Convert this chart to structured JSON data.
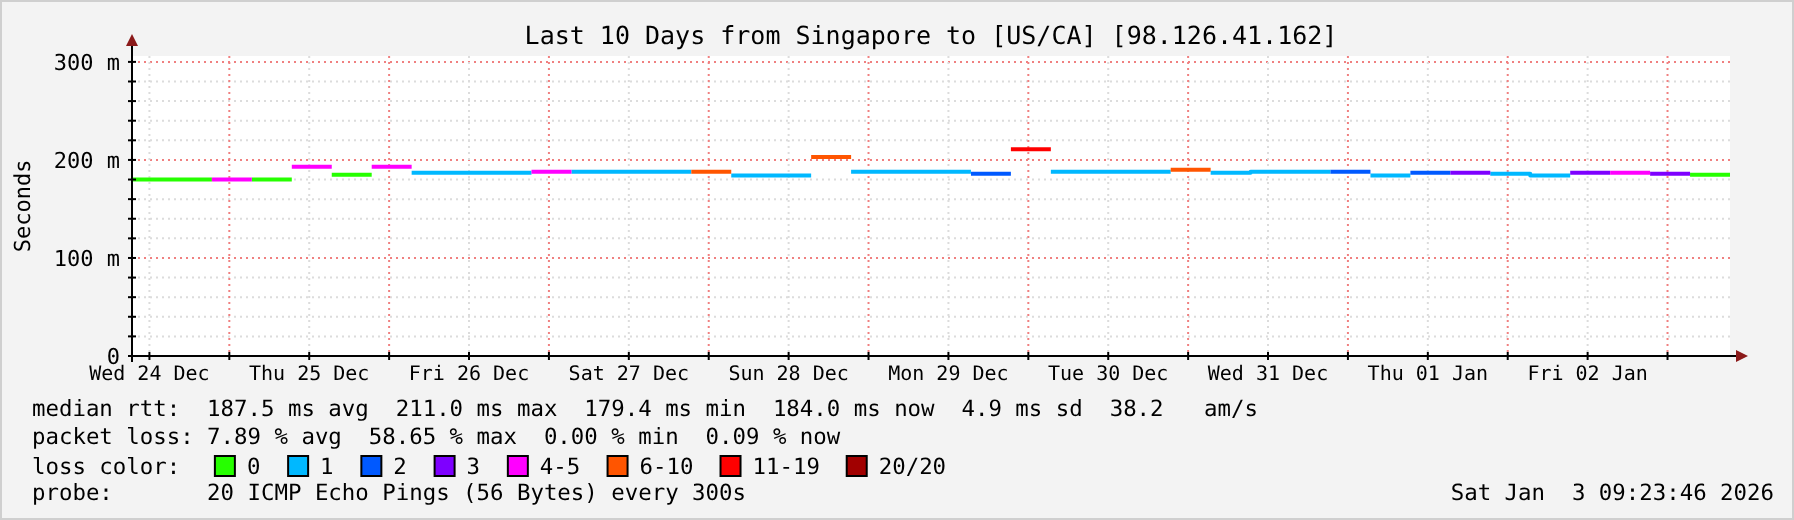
{
  "chart_data": {
    "type": "line",
    "title": "Last 10 Days from Singapore to [US/CA] [98.126.41.162]",
    "ylabel": "Seconds",
    "legend_title": "loss color:",
    "legend": "bottom",
    "grid": true,
    "xlim": [
      "2025-12-24T09:23",
      "2026-01-03T09:23"
    ],
    "xticks": [
      {
        "value": "2025-12-24T12:00",
        "label": "Wed 24 Dec"
      },
      {
        "value": "2025-12-25T12:00",
        "label": "Thu 25 Dec"
      },
      {
        "value": "2025-12-26T12:00",
        "label": "Fri 26 Dec"
      },
      {
        "value": "2025-12-27T12:00",
        "label": "Sat 27 Dec"
      },
      {
        "value": "2025-12-28T12:00",
        "label": "Sun 28 Dec"
      },
      {
        "value": "2025-12-29T12:00",
        "label": "Mon 29 Dec"
      },
      {
        "value": "2025-12-30T12:00",
        "label": "Tue 30 Dec"
      },
      {
        "value": "2025-12-31T12:00",
        "label": "Wed 31 Dec"
      },
      {
        "value": "2026-01-01T12:00",
        "label": "Thu 01 Jan"
      },
      {
        "value": "2026-01-02T12:00",
        "label": "Fri 02 Jan"
      },
      {
        "value": "2025-12-25T00:00",
        "label": null
      },
      {
        "value": "2025-12-26T00:00",
        "label": null
      },
      {
        "value": "2025-12-27T00:00",
        "label": null
      },
      {
        "value": "2025-12-28T00:00",
        "label": null
      },
      {
        "value": "2025-12-29T00:00",
        "label": null
      },
      {
        "value": "2025-12-30T00:00",
        "label": null
      },
      {
        "value": "2025-12-31T00:00",
        "label": null
      },
      {
        "value": "2026-01-01T00:00",
        "label": null
      },
      {
        "value": "2026-01-02T00:00",
        "label": null
      },
      {
        "value": "2026-01-03T00:00",
        "label": null
      }
    ],
    "ylim": [
      0,
      306
    ],
    "yticks": [
      0,
      {
        "value": 100,
        "label": "100 m"
      },
      {
        "value": 200,
        "label": "200 m"
      },
      {
        "value": 300,
        "label": "300 m"
      },
      {
        "value": 20,
        "label": null
      },
      {
        "value": 40,
        "label": null
      },
      {
        "value": 60,
        "label": null
      },
      {
        "value": 80,
        "label": null
      },
      {
        "value": 120,
        "label": null
      },
      {
        "value": 140,
        "label": null
      },
      {
        "value": 160,
        "label": null
      },
      {
        "value": 180,
        "label": null
      },
      {
        "value": 220,
        "label": null
      },
      {
        "value": 240,
        "label": null
      },
      {
        "value": 260,
        "label": null
      },
      {
        "value": 280,
        "label": null
      }
    ],
    "series": [
      {
        "name": "0",
        "color": "#26ff00",
        "x": [
          "2025-12-24T09:23",
          "2025-12-24T21:23",
          null,
          "2025-12-25T03:23",
          "2025-12-25T09:23",
          null,
          "2025-12-25T15:23",
          "2025-12-25T21:23",
          null,
          "2026-01-03T03:23",
          "2026-01-03T09:23"
        ],
        "values": [
          180,
          180,
          null,
          180,
          180,
          null,
          185,
          185,
          null,
          185,
          185
        ]
      },
      {
        "name": "1",
        "color": "#00b8ff",
        "x": [
          "2025-12-26T03:23",
          "2025-12-26T21:23",
          null,
          "2025-12-27T03:23",
          "2025-12-27T21:23",
          null,
          "2025-12-28T03:23",
          "2025-12-28T15:23",
          null,
          "2025-12-28T21:23",
          "2025-12-29T15:23",
          null,
          "2025-12-30T03:23",
          "2025-12-30T21:23",
          null,
          "2025-12-31T03:23",
          "2025-12-31T09:23",
          "2025-12-31T09:23",
          "2025-12-31T21:23",
          null,
          "2026-01-01T03:23",
          "2026-01-01T09:23",
          null,
          "2026-01-01T21:23",
          "2026-01-02T03:23",
          "2026-01-02T03:23",
          "2026-01-02T09:23"
        ],
        "values": [
          187,
          187,
          null,
          188,
          188,
          null,
          184,
          184,
          null,
          188,
          188,
          null,
          188,
          188,
          null,
          187,
          187,
          188,
          188,
          null,
          184,
          184,
          null,
          186,
          186,
          184,
          184
        ]
      },
      {
        "name": "2",
        "color": "#0059ff",
        "x": [
          "2025-12-29T15:23",
          "2025-12-29T21:23",
          null,
          "2025-12-31T21:23",
          "2026-01-01T03:23",
          null,
          "2026-01-01T09:23",
          "2026-01-01T15:23"
        ],
        "values": [
          186,
          186,
          null,
          188,
          188,
          null,
          187,
          187
        ]
      },
      {
        "name": "3",
        "color": "#7e00ff",
        "x": [
          "2026-01-01T15:23",
          "2026-01-01T21:23",
          null,
          "2026-01-02T09:23",
          "2026-01-02T15:23",
          null,
          "2026-01-02T21:23",
          "2026-01-03T03:23"
        ],
        "values": [
          187,
          187,
          null,
          187,
          187,
          null,
          186,
          186
        ]
      },
      {
        "name": "4-5",
        "color": "#ff00ff",
        "x": [
          "2025-12-24T21:23",
          "2025-12-25T03:23",
          null,
          "2025-12-25T09:23",
          "2025-12-25T15:23",
          null,
          "2025-12-25T21:23",
          "2025-12-26T03:23",
          null,
          "2025-12-26T21:23",
          "2025-12-27T03:23",
          null,
          "2026-01-02T15:23",
          "2026-01-02T21:23"
        ],
        "values": [
          180,
          180,
          null,
          193,
          193,
          null,
          193,
          193,
          null,
          188,
          188,
          null,
          187,
          187
        ]
      },
      {
        "name": "6-10",
        "color": "#ff5500",
        "x": [
          "2025-12-27T21:23",
          "2025-12-28T03:23",
          null,
          "2025-12-28T15:23",
          "2025-12-28T21:23",
          null,
          "2025-12-30T21:23",
          "2025-12-31T03:23"
        ],
        "values": [
          188,
          188,
          null,
          203,
          203,
          null,
          190,
          190
        ]
      },
      {
        "name": "11-19",
        "color": "#ff0000",
        "x": [
          "2025-12-29T21:23",
          "2025-12-30T03:23"
        ],
        "values": [
          211,
          211
        ]
      },
      {
        "name": "20/20",
        "color": "#a10000"
      }
    ],
    "annotations": [
      "median rtt:  187.5 ms avg  211.0 ms max  179.4 ms min  184.0 ms now  4.9 ms sd  38.2   am/s",
      "packet loss: 7.89 % avg  58.65 % max  0.00 % min  0.09 % now",
      "probe:       20 ICMP Echo Pings (56 Bytes) every 300s",
      "Sat Jan  3 09:23:46 2026"
    ]
  }
}
